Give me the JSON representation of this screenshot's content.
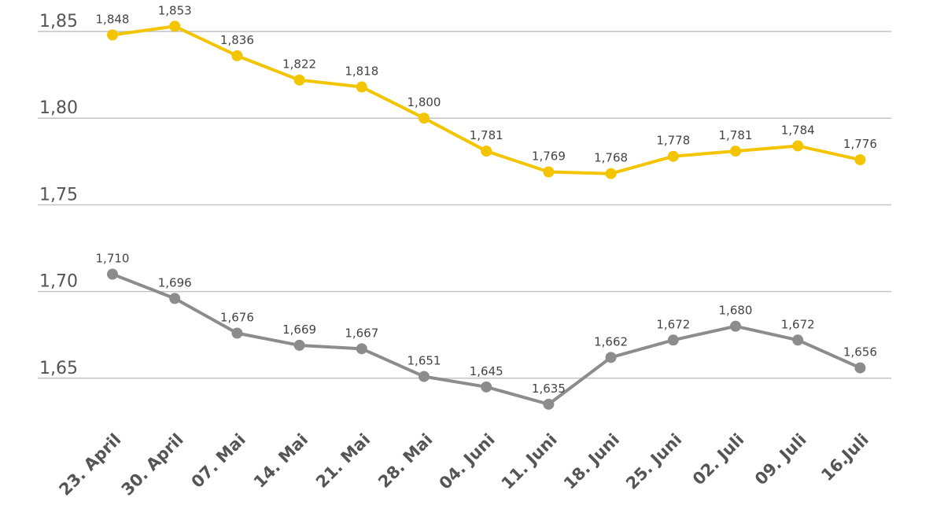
{
  "chart_data": {
    "type": "line",
    "title": "",
    "xlabel": "",
    "ylabel": "",
    "categories": [
      "23. April",
      "30. April",
      "07. Mai",
      "14. Mai",
      "21. Mai",
      "28. Mai",
      "04. Juni",
      "11. Juni",
      "18. Juni",
      "25. Juni",
      "02. Juli",
      "09. Juli",
      "16.Juli"
    ],
    "ylim": [
      1.6,
      1.87
    ],
    "yticks": [
      {
        "value": 1.85,
        "label": "1,85"
      },
      {
        "value": 1.8,
        "label": "1,80"
      },
      {
        "value": 1.75,
        "label": "1,75"
      },
      {
        "value": 1.7,
        "label": "1,70"
      },
      {
        "value": 1.65,
        "label": "1,65"
      }
    ],
    "grid": true,
    "series": [
      {
        "name": "yellow",
        "color": "#f2c500",
        "values": [
          1.848,
          1.853,
          1.836,
          1.822,
          1.818,
          1.8,
          1.781,
          1.769,
          1.768,
          1.778,
          1.781,
          1.784,
          1.776
        ],
        "labels": [
          "1,848",
          "1,853",
          "1,836",
          "1,822",
          "1,818",
          "1,800",
          "1,781",
          "1,769",
          "1,768",
          "1,778",
          "1,781",
          "1,784",
          "1,776"
        ]
      },
      {
        "name": "gray",
        "color": "#8c8c8c",
        "values": [
          1.71,
          1.696,
          1.676,
          1.669,
          1.667,
          1.651,
          1.645,
          1.635,
          1.662,
          1.672,
          1.68,
          1.672,
          1.656
        ],
        "labels": [
          "1,710",
          "1,696",
          "1,676",
          "1,669",
          "1,667",
          "1,651",
          "1,645",
          "1,635",
          "1,662",
          "1,672",
          "1,680",
          "1,672",
          "1,656"
        ]
      }
    ]
  }
}
